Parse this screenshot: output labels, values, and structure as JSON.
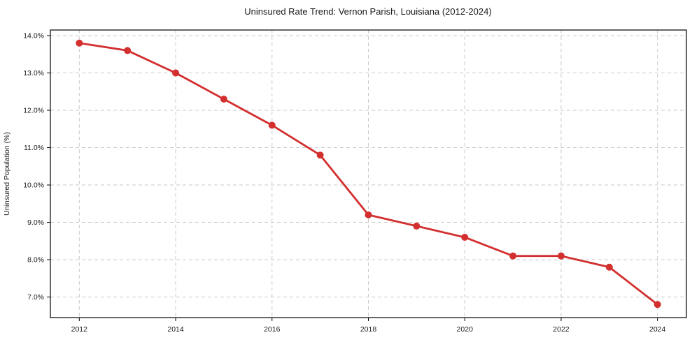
{
  "page": {
    "background": "#ffffff"
  },
  "chart_data": {
    "type": "line",
    "title": "Uninsured Rate Trend: Vernon Parish, Louisiana (2012-2024)",
    "xlabel": "",
    "ylabel": "Uninsured Population (%)",
    "x": [
      2012,
      2013,
      2014,
      2015,
      2016,
      2017,
      2018,
      2019,
      2020,
      2021,
      2022,
      2023,
      2024
    ],
    "values": [
      13.8,
      13.6,
      13.0,
      12.3,
      11.6,
      10.8,
      9.2,
      8.9,
      8.6,
      8.1,
      8.1,
      7.8,
      6.8
    ],
    "xlim": [
      2011.4,
      2024.6
    ],
    "ylim": [
      6.45,
      14.15
    ],
    "xticks": [
      {
        "value": 2012,
        "label": "2012"
      },
      {
        "value": 2014,
        "label": "2014"
      },
      {
        "value": 2016,
        "label": "2016"
      },
      {
        "value": 2018,
        "label": "2018"
      },
      {
        "value": 2020,
        "label": "2020"
      },
      {
        "value": 2022,
        "label": "2022"
      },
      {
        "value": 2024,
        "label": "2024"
      }
    ],
    "yticks": [
      {
        "value": 7.0,
        "label": "7.0%"
      },
      {
        "value": 8.0,
        "label": "8.0%"
      },
      {
        "value": 9.0,
        "label": "9.0%"
      },
      {
        "value": 10.0,
        "label": "10.0%"
      },
      {
        "value": 11.0,
        "label": "11.0%"
      },
      {
        "value": 12.0,
        "label": "12.0%"
      },
      {
        "value": 13.0,
        "label": "13.0%"
      },
      {
        "value": 14.0,
        "label": "14.0%"
      }
    ],
    "grid": true,
    "legend": false,
    "marker": "circle",
    "line_color": "#d32f2f",
    "grid_color": "#c9c9c9",
    "frame_color": "#000000",
    "text_color": "#1a1a1a"
  }
}
